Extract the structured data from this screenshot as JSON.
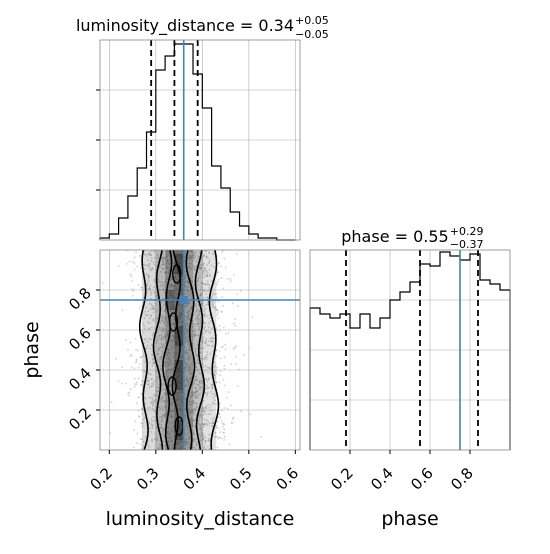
{
  "chart_data": [
    {
      "panel": "hist_luminosity_distance",
      "type": "histogram-step",
      "title_main": "luminosity_distance = 0.34",
      "title_sup": "+0.05",
      "title_sub": "−0.05",
      "xlim": [
        0.18,
        0.61
      ],
      "ylim": [
        0,
        1.0
      ],
      "grid": true,
      "bin_edges": [
        0.18,
        0.2,
        0.22,
        0.24,
        0.26,
        0.28,
        0.3,
        0.32,
        0.34,
        0.36,
        0.38,
        0.4,
        0.42,
        0.44,
        0.46,
        0.48,
        0.5,
        0.52,
        0.54,
        0.56,
        0.58,
        0.6
      ],
      "counts": [
        0.01,
        0.03,
        0.11,
        0.22,
        0.36,
        0.54,
        0.85,
        0.92,
        0.98,
        0.98,
        0.83,
        0.66,
        0.37,
        0.26,
        0.14,
        0.07,
        0.03,
        0.01,
        0.01,
        0.0,
        0.0
      ],
      "quantiles": [
        0.29,
        0.34,
        0.39
      ],
      "truth": 0.36
    },
    {
      "panel": "hist_phase",
      "type": "histogram-step",
      "title_main": "phase = 0.55",
      "title_sup": "+0.29",
      "title_sub": "−0.37",
      "xlim": [
        0.0,
        1.0
      ],
      "ylim": [
        0,
        1.0
      ],
      "grid": true,
      "bin_edges": [
        0.0,
        0.05,
        0.1,
        0.15,
        0.2,
        0.25,
        0.3,
        0.35,
        0.4,
        0.45,
        0.5,
        0.55,
        0.6,
        0.65,
        0.7,
        0.75,
        0.8,
        0.85,
        0.9,
        0.95,
        1.0
      ],
      "counts": [
        0.71,
        0.68,
        0.66,
        0.68,
        0.61,
        0.68,
        0.61,
        0.66,
        0.75,
        0.79,
        0.84,
        0.93,
        0.92,
        0.99,
        0.97,
        0.95,
        0.98,
        0.85,
        0.83,
        0.8
      ],
      "quantiles": [
        0.18,
        0.55,
        0.84
      ],
      "truth": 0.75
    },
    {
      "panel": "scatter_2d",
      "type": "scatter-density",
      "xlim": [
        0.18,
        0.61
      ],
      "ylim": [
        0.0,
        1.0
      ],
      "xlabel": "luminosity_distance",
      "ylabel": "phase",
      "x_ticks": [
        "0.2",
        "0.3",
        "0.4",
        "0.5",
        "0.6"
      ],
      "y_ticks": [
        "0.2",
        "0.4",
        "0.6",
        "0.8"
      ],
      "phase_ticks": [
        "0.2",
        "0.4",
        "0.6",
        "0.8"
      ],
      "truth": [
        0.36,
        0.75
      ],
      "grid": true
    }
  ],
  "colors": {
    "truth": "#4682b4",
    "line": "#000000",
    "grid": "#b0b0b0",
    "points": "#9a9a9a"
  }
}
